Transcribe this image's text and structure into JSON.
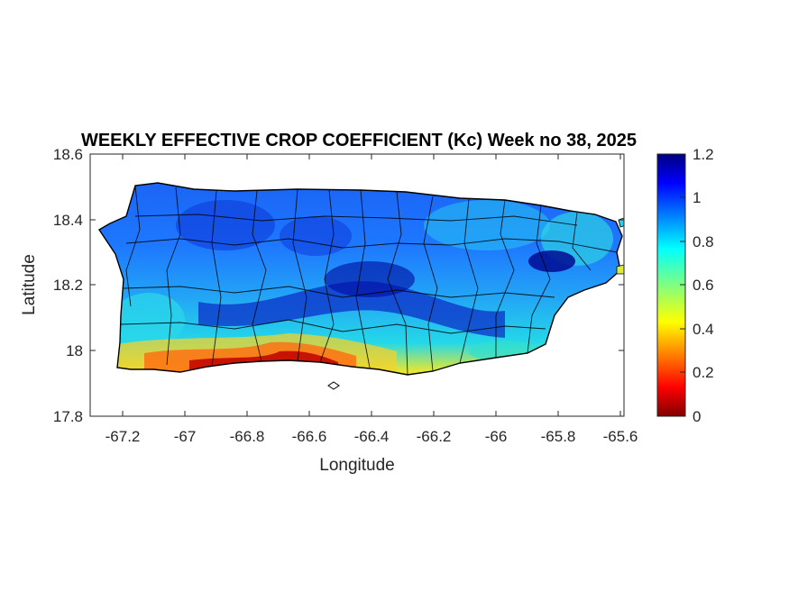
{
  "title": "WEEKLY EFFECTIVE CROP COEFFICIENT (Kc) Week no 38, 2025",
  "xlabel": "Longitude",
  "ylabel": "Latitude",
  "x_ticks": [
    "-67.2",
    "-67",
    "-66.8",
    "-66.6",
    "-66.4",
    "-66.2",
    "-66",
    "-65.8",
    "-65.6"
  ],
  "y_ticks": [
    "18.6",
    "18.4",
    "18.2",
    "18",
    "17.8"
  ],
  "colorbar_ticks": [
    "1.2",
    "1",
    "0.8",
    "0.6",
    "0.4",
    "0.2",
    "0"
  ],
  "chart_data": {
    "type": "heatmap",
    "title": "WEEKLY EFFECTIVE CROP COEFFICIENT (Kc) Week no 38, 2025",
    "xlabel": "Longitude",
    "ylabel": "Latitude",
    "xlim": [
      -67.3,
      -65.58
    ],
    "ylim": [
      17.8,
      18.6
    ],
    "colormap": "jet",
    "clim": [
      0,
      1.2
    ],
    "colorbar": "right",
    "region": "Puerto Rico"
  }
}
